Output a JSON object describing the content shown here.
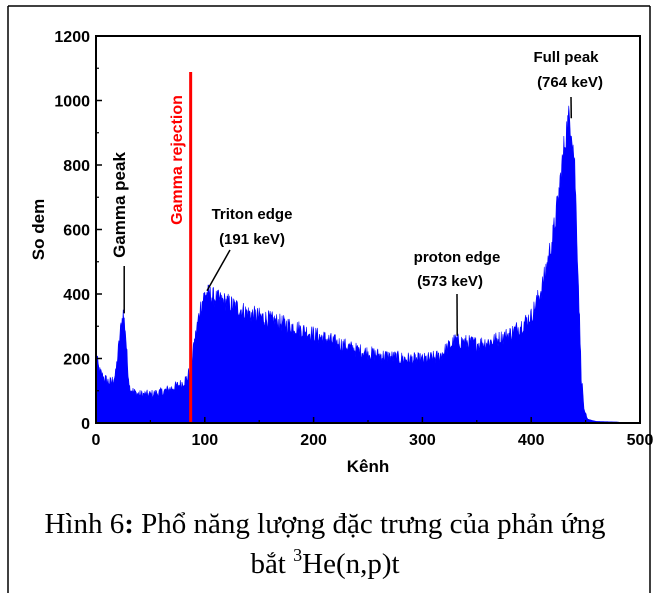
{
  "chart_data": {
    "type": "area",
    "xlabel": "Kênh",
    "ylabel": "So dem",
    "xlim": [
      0,
      500
    ],
    "ylim": [
      0,
      1200
    ],
    "xticks": [
      0,
      100,
      200,
      300,
      400,
      500
    ],
    "yticks": [
      0,
      200,
      400,
      600,
      800,
      1000,
      1200
    ],
    "grid": false,
    "fill_color": "#0000ff",
    "rejection_color": "#ff0000",
    "rejection_channel": 87,
    "profile": {
      "x": [
        0,
        1,
        3,
        6,
        10,
        14,
        18,
        21,
        23,
        25,
        27,
        29,
        31,
        35,
        40,
        50,
        60,
        70,
        78,
        84,
        88,
        90,
        93,
        96,
        100,
        104,
        110,
        120,
        140,
        160,
        180,
        200,
        220,
        240,
        260,
        280,
        300,
        315,
        330,
        340,
        350,
        360,
        370,
        380,
        390,
        400,
        410,
        420,
        425,
        430,
        433,
        435,
        437,
        440,
        443,
        446,
        449,
        452,
        456,
        460,
        470,
        480,
        482
      ],
      "y": [
        250,
        195,
        160,
        145,
        130,
        125,
        150,
        240,
        300,
        340,
        290,
        180,
        110,
        95,
        88,
        88,
        95,
        108,
        120,
        140,
        190,
        240,
        300,
        360,
        400,
        400,
        385,
        375,
        340,
        320,
        300,
        275,
        250,
        225,
        210,
        200,
        195,
        205,
        255,
        250,
        245,
        250,
        260,
        275,
        300,
        330,
        420,
        580,
        700,
        850,
        920,
        950,
        920,
        800,
        480,
        150,
        30,
        12,
        8,
        5,
        4,
        3,
        0
      ]
    },
    "annotations": [
      {
        "text": "Gamma peak",
        "x": 25,
        "y": 340,
        "vertical": true
      },
      {
        "text": "Gamma rejection",
        "x": 87,
        "vertical": true
      },
      {
        "line1": "Triton edge",
        "line2": "(191 keV)",
        "x": 102,
        "y": 410
      },
      {
        "line1": "proton edge",
        "line2": "(573 keV)",
        "x": 332,
        "y": 270
      },
      {
        "line1": "Full peak",
        "line2": "(764 keV)",
        "x": 435,
        "y": 945
      }
    ]
  },
  "caption": {
    "prefix": "Hình 6",
    "colon": ":",
    "text": " Phổ năng lượng đặc trưng của phản ứng",
    "line2_pre": "bắt ",
    "superscript": "3",
    "line2_post": "He(n,p)t"
  }
}
